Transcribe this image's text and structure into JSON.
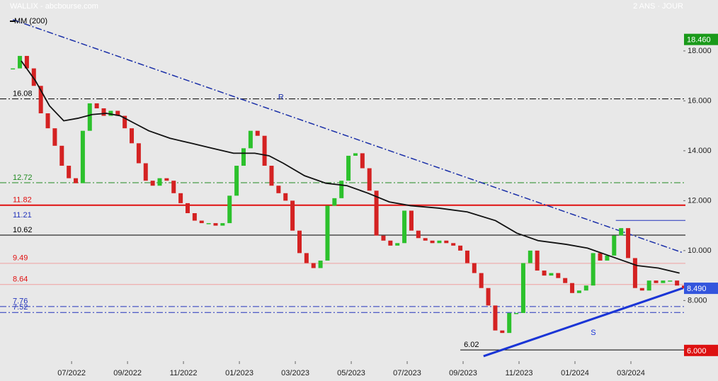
{
  "chart_data": {
    "type": "candlestick",
    "title": "WALLIX - abcbourse.com",
    "subtitle": "2 ANS · JOUR",
    "x": [
      3.9,
      4.15,
      4.4,
      4.65,
      4.9,
      5.15,
      5.4,
      5.65,
      5.9,
      6.15,
      6.4,
      6.65,
      6.9,
      7.15,
      7.4,
      7.65,
      7.9,
      8.15,
      8.4,
      8.65,
      8.9,
      9.15,
      9.4,
      9.65,
      9.9,
      10.15,
      10.4,
      10.65,
      10.9,
      11.15,
      11.4,
      11.65,
      11.9,
      12.15,
      12.4,
      12.65,
      12.9,
      13.15,
      13.4,
      13.65,
      13.9,
      14.15,
      14.4,
      14.65,
      14.9,
      15.15,
      15.4,
      15.65,
      15.9,
      16.15,
      16.4,
      16.65,
      16.9,
      17.15,
      17.4,
      17.65,
      17.9,
      18.15,
      18.4,
      18.65,
      18.9,
      19.15,
      19.4,
      19.65,
      19.9,
      20.15,
      20.4,
      20.65,
      20.9,
      21.15,
      21.4,
      21.65,
      21.9,
      22.15,
      22.4,
      22.65,
      22.9,
      23.15,
      23.4,
      23.65,
      23.9,
      24.15,
      24.4,
      24.65,
      24.9,
      25.15,
      25.4,
      25.65,
      25.9,
      26.15,
      26.4,
      26.65,
      26.9,
      27.15,
      27.4,
      27.65,
      27.9
    ],
    "series": [
      {
        "name": "WALLIX",
        "up_color": "#2cc12c",
        "down_color": "#d42222",
        "values": [
          17.3,
          17.8,
          17.3,
          16.6,
          15.5,
          14.9,
          14.2,
          13.4,
          12.9,
          12.7,
          14.8,
          15.9,
          15.7,
          15.4,
          15.6,
          15.4,
          14.9,
          14.3,
          13.5,
          12.8,
          12.6,
          12.9,
          12.8,
          12.3,
          11.9,
          11.5,
          11.2,
          11.1,
          11.1,
          11.0,
          11.1,
          12.2,
          13.4,
          14.1,
          14.8,
          14.6,
          13.4,
          12.6,
          12.3,
          12.0,
          10.8,
          9.9,
          9.5,
          9.3,
          9.6,
          11.8,
          12.1,
          12.8,
          13.8,
          13.9,
          13.3,
          12.4,
          10.6,
          10.4,
          10.2,
          10.3,
          11.6,
          10.8,
          10.5,
          10.4,
          10.3,
          10.4,
          10.3,
          10.2,
          10.0,
          9.5,
          9.1,
          8.5,
          7.8,
          6.8,
          6.7,
          7.5,
          7.5,
          9.5,
          10.0,
          9.2,
          9.0,
          9.1,
          8.9,
          8.7,
          8.3,
          8.4,
          8.6,
          9.9,
          9.6,
          9.8,
          10.6,
          10.9,
          9.7,
          8.5,
          8.4,
          8.8,
          8.7,
          8.8,
          8.8,
          8.6,
          8.49
        ]
      }
    ],
    "ma": {
      "name": "MM (200)",
      "color": "#111111",
      "x": [
        4.2,
        4.71,
        5.21,
        5.72,
        6.22,
        6.73,
        7.24,
        7.74,
        8.25,
        8.76,
        9.52,
        10.28,
        11.03,
        11.79,
        12.55,
        13.06,
        13.57,
        14.33,
        15.09,
        15.85,
        16.6,
        17.36,
        18.12,
        19.14,
        20.15,
        21.16,
        21.92,
        22.68,
        23.69,
        24.45,
        25.21,
        26.22,
        26.98,
        27.74
      ],
      "values": [
        17.6,
        16.8,
        15.8,
        15.2,
        15.3,
        15.45,
        15.5,
        15.4,
        15.1,
        14.8,
        14.5,
        14.3,
        14.1,
        13.9,
        13.9,
        13.8,
        13.5,
        13.0,
        12.7,
        12.6,
        12.3,
        11.95,
        11.8,
        11.7,
        11.55,
        11.2,
        10.7,
        10.4,
        10.25,
        10.1,
        9.8,
        9.4,
        9.3,
        9.1
      ]
    },
    "levels": [
      {
        "value": 16.08,
        "color": "#000000",
        "label_color": "#000000",
        "dash": "dashdot"
      },
      {
        "value": 12.72,
        "color": "#1f8a1f",
        "label_color": "#1f8a1f",
        "dash": "dashdot"
      },
      {
        "value": 11.82,
        "color": "#e01010",
        "label_color": "#e01010",
        "dash": "solid",
        "width": 2
      },
      {
        "value": 11.21,
        "color": "#2233bb",
        "label_color": "#2233bb",
        "dash": "solid",
        "from": 25.46
      },
      {
        "value": 10.62,
        "color": "#000000",
        "label_color": "#000000",
        "dash": "solid"
      },
      {
        "value": 9.49,
        "color": "#f0a0a0",
        "label_color": "#e01010",
        "dash": "solid"
      },
      {
        "value": 8.64,
        "color": "#f0a0a0",
        "label_color": "#e01010",
        "dash": "solid"
      },
      {
        "value": 7.76,
        "color": "#2233bb",
        "label_color": "#2233bb",
        "dash": "dashdot"
      },
      {
        "value": 7.52,
        "color": "#2233bb",
        "label_color": "#2233bb",
        "dash": "dashdot"
      },
      {
        "value": 6.02,
        "color": "#000000",
        "label_color": "#000000",
        "dash": "solid",
        "from": 19.9
      }
    ],
    "trendlines": [
      {
        "label": "R",
        "color": "#1a2fa8",
        "dash": "dashdot",
        "start": [
          3.9,
          19.25
        ],
        "end": [
          27.87,
          9.91
        ]
      },
      {
        "label": "S",
        "color": "#1a35d6",
        "dash": "solid",
        "width": 3,
        "start": [
          20.73,
          5.77
        ],
        "end": [
          27.87,
          8.5
        ]
      }
    ],
    "badges": [
      {
        "value": 18.46,
        "label": "18.460",
        "color": "#1a9a1a"
      },
      {
        "value": 8.49,
        "label": "8.490",
        "color": "#3355dd"
      },
      {
        "value": 6,
        "label": "6.000",
        "color": "#dd1111"
      }
    ],
    "xlim": [
      3.44,
      27.95
    ],
    "ylim": [
      5.57,
      20.04
    ],
    "xticks": [
      {
        "value": 6,
        "label": "07/2022"
      },
      {
        "value": 8,
        "label": "09/2022"
      },
      {
        "value": 10,
        "label": "11/2022"
      },
      {
        "value": 12,
        "label": "01/2023"
      },
      {
        "value": 14,
        "label": "03/2023"
      },
      {
        "value": 16,
        "label": "05/2023"
      },
      {
        "value": 18,
        "label": "07/2023"
      },
      {
        "value": 20,
        "label": "09/2023"
      },
      {
        "value": 22,
        "label": "11/2023"
      },
      {
        "value": 24,
        "label": "01/2024"
      },
      {
        "value": 26,
        "label": "03/2024"
      }
    ],
    "yticks": [
      {
        "value": 8,
        "label": "8.000"
      },
      {
        "value": 10,
        "label": "10.000"
      },
      {
        "value": 12,
        "label": "12.000"
      },
      {
        "value": 14,
        "label": "14.000"
      },
      {
        "value": 16,
        "label": "16.000"
      },
      {
        "value": 18,
        "label": "18.000"
      }
    ]
  }
}
